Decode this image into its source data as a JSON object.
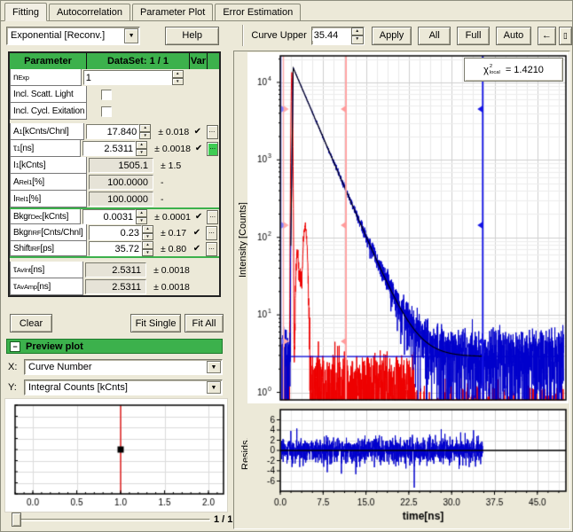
{
  "tabs": [
    {
      "label": "Fitting",
      "active": true
    },
    {
      "label": "Autocorrelation",
      "active": false
    },
    {
      "label": "Parameter Plot",
      "active": false
    },
    {
      "label": "Error Estimation",
      "active": false
    }
  ],
  "toolbar": {
    "model": "Exponential [Reconv.]",
    "help": "Help",
    "curve_upper_label": "Curve Upper",
    "curve_upper_value": "35.44",
    "apply": "Apply",
    "all": "All",
    "full": "Full",
    "auto": "Auto",
    "back": "←",
    "end": "▯"
  },
  "icons": {
    "spin_up": "▲",
    "spin_down": "▼",
    "dropdown": "▼",
    "check": "✔"
  },
  "table": {
    "header": {
      "parameter": "Parameter",
      "dataset": "DataSet: 1 / 1",
      "var": "Var"
    },
    "dots_label": "...",
    "rows": [
      {
        "base": "n",
        "sub": "Exp",
        "unit": "",
        "control": "spinner",
        "wide": true,
        "value": "1",
        "error": "",
        "var": false,
        "dots": false
      },
      {
        "base": "Incl. Scatt. Light",
        "sub": "",
        "unit": "",
        "control": "checkbox"
      },
      {
        "base": "Incl. Cycl. Exitation",
        "sub": "",
        "unit": "",
        "control": "checkbox"
      },
      {
        "base": "A",
        "sub": "1",
        "unit": "[kCnts/Chnl]",
        "control": "spinner",
        "value": "17.840",
        "error": "± 0.018",
        "var": true,
        "dots": true,
        "gapBefore": true
      },
      {
        "base": "τ",
        "sub": "1",
        "unit": "[ns]",
        "control": "spinner",
        "value": "2.5311",
        "error": "± 0.0018",
        "var": true,
        "dots": true,
        "dotsGreen": true
      },
      {
        "base": "I",
        "sub": "1",
        "unit": "[kCnts]",
        "control": "readonly",
        "value": "1505.1",
        "error": "± 1.5"
      },
      {
        "base": "A",
        "sub": "Rel1",
        "unit": "[%]",
        "control": "readonly",
        "value": "100.0000",
        "error": "-"
      },
      {
        "base": "I",
        "sub": "Rel1",
        "unit": "[%]",
        "control": "readonly",
        "value": "100.0000",
        "error": "-"
      },
      {
        "base": "Bkgr",
        "sub": "Dec",
        "unit": "[kCnts]",
        "control": "spinner",
        "value": "0.0031",
        "error": "± 0.0001",
        "var": true,
        "dots": true,
        "groupTop": true
      },
      {
        "base": "Bkgr",
        "sub": "IRF",
        "unit": "[Cnts/Chnl]",
        "control": "spinner",
        "value": "0.23",
        "error": "± 0.17",
        "var": true,
        "dots": true
      },
      {
        "base": "Shift",
        "sub": "IRF",
        "unit": "[ps]",
        "control": "spinner",
        "value": "35.72",
        "error": "± 0.80",
        "var": true,
        "dots": true,
        "groupBottom": true
      },
      {
        "base": "τ",
        "sub": "AvInt",
        "unit": "[ns]",
        "control": "readonly",
        "value": "2.5311",
        "error": "± 0.0018",
        "gapBefore": true
      },
      {
        "base": "τ",
        "sub": "AvAmp",
        "unit": "[ns]",
        "control": "readonly",
        "value": "2.5311",
        "error": "± 0.0018"
      }
    ]
  },
  "actions": {
    "clear": "Clear",
    "fit_single": "Fit Single",
    "fit_all": "Fit All"
  },
  "preview": {
    "title": "Preview plot",
    "collapse": "−",
    "x_label": "X:",
    "x_value": "Curve Number",
    "y_label": "Y:",
    "y_value": "Integral Counts [kCnts]",
    "pager": "1 / 1"
  },
  "chart_data": {
    "main_plot": {
      "type": "line",
      "ylabel": "Intensity [Counts]",
      "yscale": "log",
      "ylim": [
        0.8,
        22000
      ],
      "xlim": [
        0,
        50
      ],
      "ytick_exponents": [
        0,
        1,
        2,
        3,
        4
      ],
      "ytick_base": "10",
      "grid": true,
      "series": [
        {
          "name": "IRF",
          "color": "#ee0000",
          "peak_time_ns": 2.0,
          "peak_counts": 13500,
          "sigma_ns": 0.135,
          "afterpulse": {
            "time_ns": 4.35,
            "counts": 135
          },
          "noise_floor_counts": 1.0,
          "noise_end_ns": 23.5
        },
        {
          "name": "Decay data",
          "color": "#0000cc",
          "rise_end_ns": 2.25,
          "peak_counts": 15500,
          "tau_ns": 2.5311,
          "background_counts": 2.9,
          "fit_end_ns": 35.44
        },
        {
          "name": "Fit",
          "color": "#000000",
          "tau_ns": 2.5311,
          "amplitude_kcnts_per_chnl": 17.84,
          "background_counts": 2.9
        },
        {
          "name": "Background level",
          "color": "#0000dd",
          "style": "hline",
          "value": 2.9
        }
      ],
      "cursors": [
        {
          "t_ns": 0.1,
          "color": "#7d7dff",
          "width": 1.4,
          "dir": 1
        },
        {
          "t_ns": 0.55,
          "color": "#ffaaaa",
          "width": 1.4,
          "dir": 1
        },
        {
          "t_ns": 11.5,
          "color": "#ff9c9c",
          "width": 1.8,
          "dir": -1
        },
        {
          "t_ns": 35.44,
          "color": "#1515e6",
          "width": 1.8,
          "dir": -1
        }
      ],
      "annotation": {
        "base": "χ",
        "sup": "2",
        "sub": "local",
        "eq": "=",
        "value": "1.4210"
      }
    },
    "residuals_plot": {
      "type": "line",
      "ylabel": "Resids.",
      "xlabel": "time[ns]",
      "color": "#0000cc",
      "ylim": [
        -8,
        8
      ],
      "yticks": [
        "6",
        "4",
        "2",
        "0",
        "-2",
        "-4",
        "-6"
      ],
      "xticks": [
        "0.0",
        "7.5",
        "15.0",
        "22.5",
        "30.0",
        "37.5",
        "45.0"
      ],
      "xtick_values": [
        0,
        7.5,
        15,
        22.5,
        30,
        37.5,
        45
      ],
      "data_range_ns": [
        0.15,
        35.44
      ],
      "noise_sd": 1.28,
      "outlier_low": {
        "t_ns": 23.45,
        "value": -7.3
      },
      "outlier_high": {
        "t_ns": 2.9,
        "value": 4.3
      },
      "zero_line_color": "#000000"
    },
    "preview_plot": {
      "type": "scatter",
      "xticks": [
        "0.0",
        "0.5",
        "1.0",
        "1.5",
        "2.0"
      ],
      "xtick_values": [
        0,
        0.5,
        1,
        1.5,
        2
      ],
      "xlim": [
        -0.2,
        2.17
      ],
      "points": [
        {
          "x": 1.0,
          "marker": "black-square"
        }
      ],
      "vline": {
        "x": 1.0,
        "color": "#dd0000"
      },
      "grid": true
    }
  }
}
